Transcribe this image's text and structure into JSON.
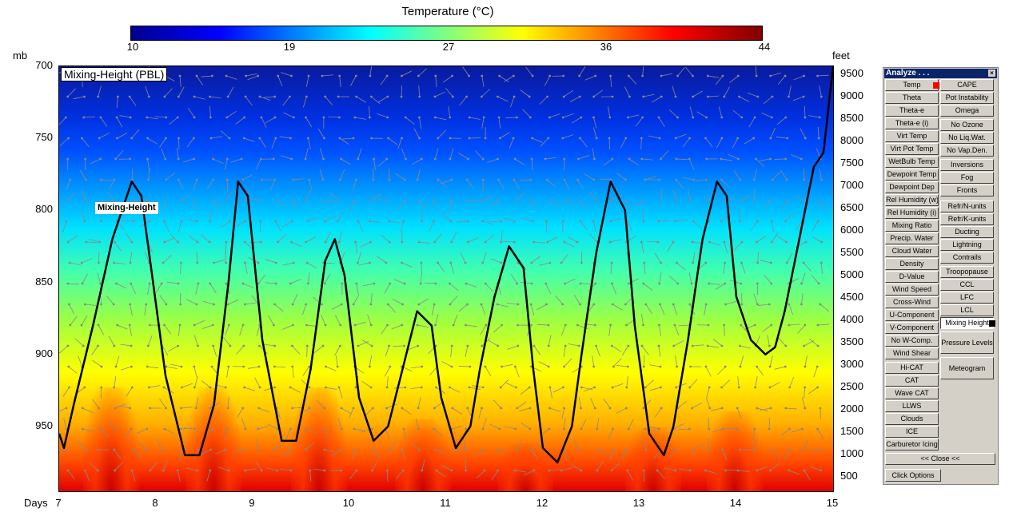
{
  "colorbar": {
    "title": "Temperature (°C)",
    "ticks": [
      "10",
      "19",
      "27",
      "36",
      "44"
    ]
  },
  "plot": {
    "title": "Mixing-Height (PBL)",
    "mixing_label": "Mixing-Height",
    "left_axis_unit": "mb",
    "right_axis_unit": "feet",
    "x_axis_label": "Days"
  },
  "chart_data": {
    "type": "line",
    "title": "Mixing-Height (PBL)",
    "xlabel": "Days",
    "ylabel": "mb",
    "x_ticks": [
      "7",
      "8",
      "9",
      "10",
      "11",
      "12",
      "13",
      "14",
      "15"
    ],
    "y_ticks_left": [
      "700",
      "750",
      "800",
      "850",
      "900",
      "950"
    ],
    "y_ticks_right": [
      "9500",
      "9000",
      "8500",
      "8000",
      "7500",
      "7000",
      "6500",
      "6000",
      "5500",
      "5000",
      "4500",
      "4000",
      "3500",
      "3000",
      "2500",
      "2000",
      "1500",
      "1000",
      "500"
    ],
    "ylim": [
      995,
      700
    ],
    "xlim": [
      7,
      15
    ],
    "series": [
      {
        "name": "Mixing-Height",
        "x": [
          7.0,
          7.05,
          7.15,
          7.35,
          7.55,
          7.75,
          7.85,
          7.95,
          8.1,
          8.3,
          8.45,
          8.6,
          8.75,
          8.85,
          8.95,
          9.1,
          9.3,
          9.45,
          9.6,
          9.75,
          9.85,
          9.95,
          10.1,
          10.25,
          10.4,
          10.55,
          10.7,
          10.85,
          10.95,
          11.1,
          11.25,
          11.35,
          11.5,
          11.65,
          11.8,
          11.9,
          12.0,
          12.15,
          12.3,
          12.4,
          12.55,
          12.7,
          12.85,
          12.95,
          13.1,
          13.25,
          13.35,
          13.5,
          13.65,
          13.8,
          13.9,
          14.0,
          14.15,
          14.3,
          14.4,
          14.5,
          14.65,
          14.8,
          14.9,
          15.0
        ],
        "y": [
          955,
          965,
          935,
          880,
          820,
          780,
          790,
          840,
          915,
          970,
          970,
          935,
          850,
          780,
          790,
          890,
          960,
          960,
          910,
          835,
          820,
          845,
          930,
          960,
          950,
          910,
          870,
          880,
          930,
          965,
          950,
          910,
          860,
          825,
          840,
          910,
          965,
          975,
          950,
          900,
          830,
          780,
          800,
          880,
          955,
          970,
          950,
          890,
          820,
          780,
          790,
          860,
          890,
          900,
          895,
          870,
          820,
          770,
          760,
          700
        ]
      }
    ],
    "colorbar_range": [
      10,
      44
    ],
    "grid": false
  },
  "panel": {
    "title": "Analyze . . .",
    "close_glyph": "×",
    "left_buttons": [
      "Temp",
      "Theta",
      "Theta-e",
      "Theta-e (i)",
      "Virt Temp",
      "Virt Pot Temp",
      "WetBulb Temp",
      "Dewpoint Temp",
      "Dewpoint Dep",
      "Rel Humidity (w)",
      "Rel Humidity (i)",
      "Mixing Ratio",
      "Precip. Water",
      "Cloud Water",
      "Density",
      "D-Value",
      "Wind Speed",
      "Cross-Wind",
      "U-Component",
      "V-Component",
      "No W-Comp.",
      "Wind Shear",
      "Hi-CAT",
      "CAT",
      "Wave CAT",
      "LLWS",
      "Clouds",
      "ICE",
      "Carburetor Icing"
    ],
    "right_buttons": [
      "CAPE",
      "Pot Instability",
      "Omega",
      "No Ozone",
      "No Liq.Wat.",
      "No Vap.Den.",
      "Inversions",
      "Fog",
      "Fronts",
      "Refr/N-units",
      "Refr/K-units",
      "Ducting",
      "Lightning",
      "Contrails",
      "Troopopause",
      "CCL",
      "LFC",
      "LCL",
      "Mixing Height",
      "Pressure Levels",
      "Meteogram"
    ],
    "close_button": "<< Close <<",
    "options_button": "Click Options",
    "temp_swatch_color": "#ff0000",
    "mixing_swatch_color": "#000000"
  }
}
